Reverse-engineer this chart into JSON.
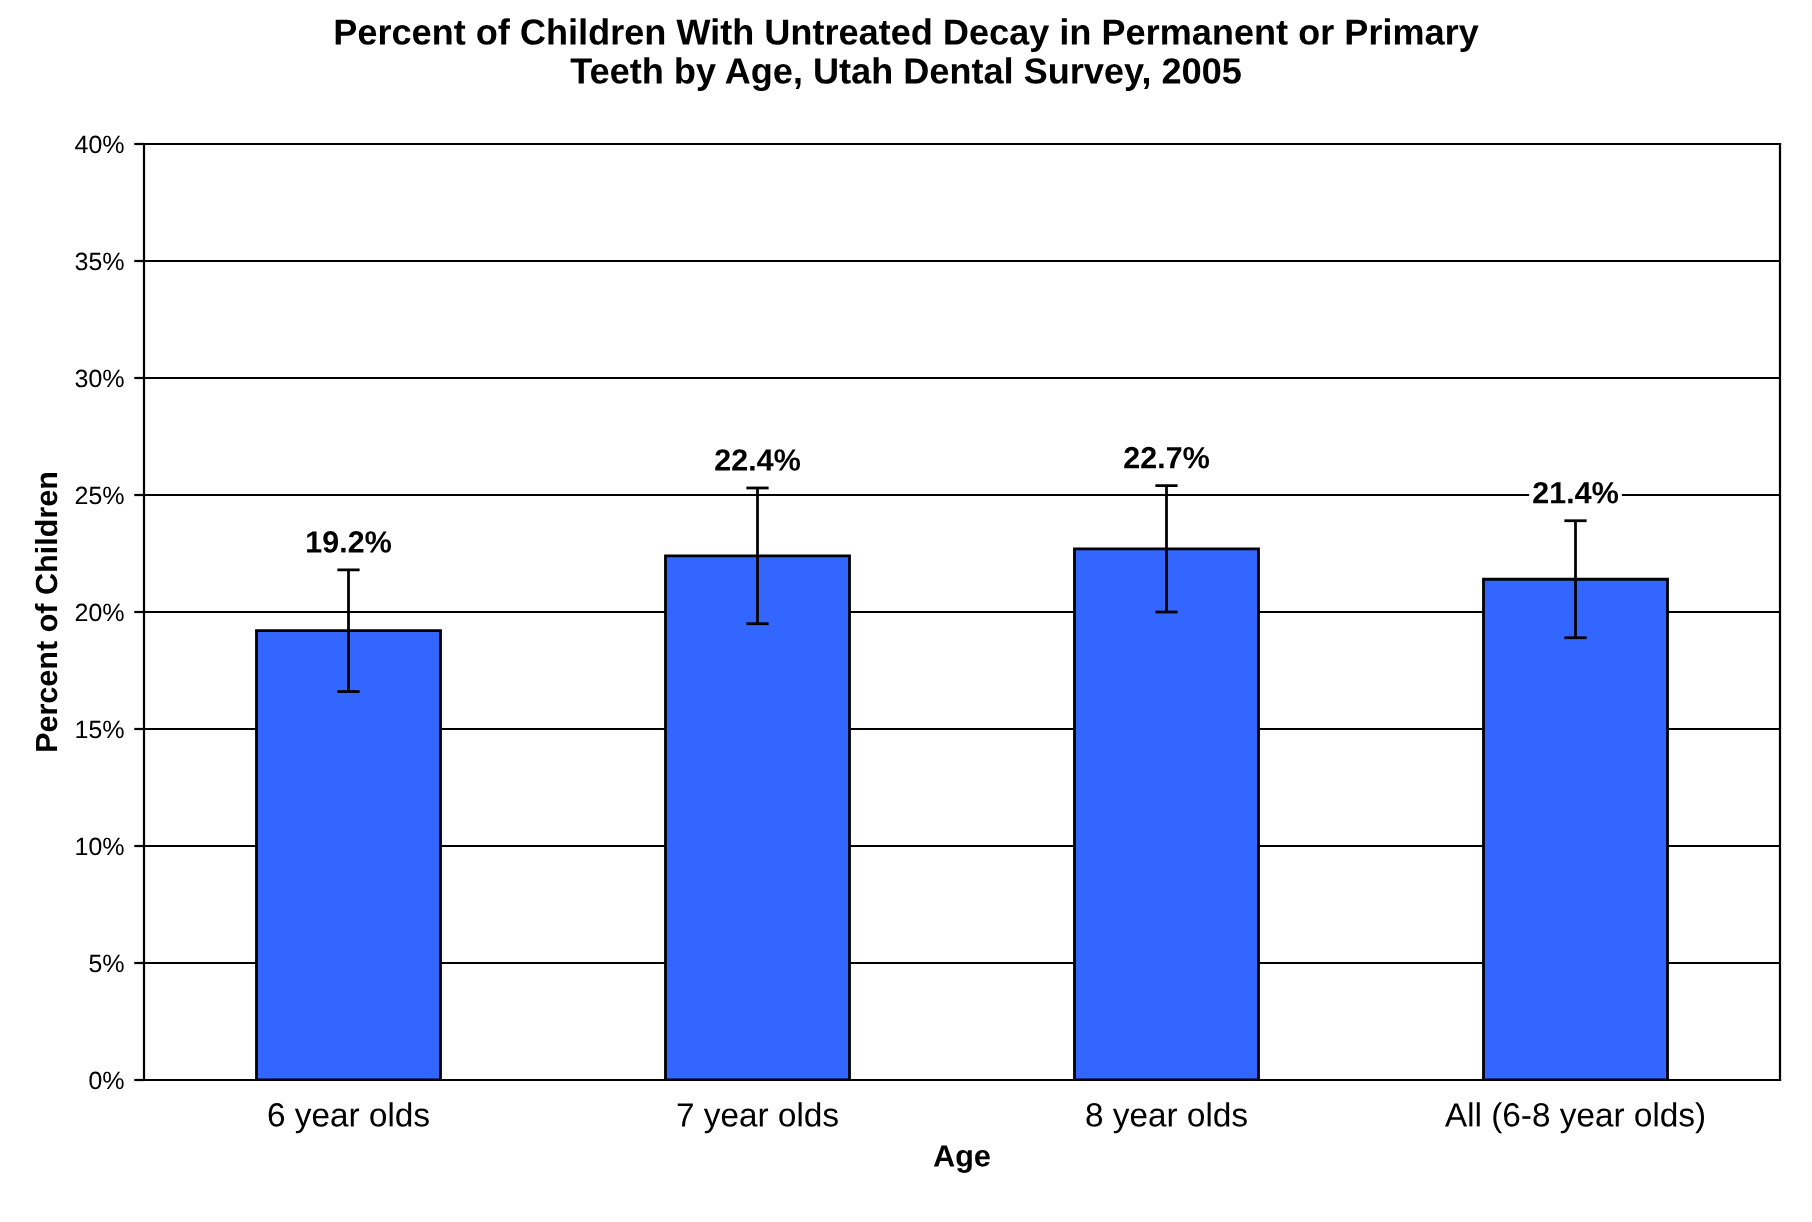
{
  "chart_data": {
    "type": "bar",
    "title": "Percent of Children With Untreated Decay in Permanent or Primary\nTeeth by Age, Utah Dental Survey, 2005",
    "xlabel": "Age",
    "ylabel": "Percent of Children",
    "categories": [
      "6 year olds",
      "7 year olds",
      "8 year olds",
      "All (6-8 year olds)"
    ],
    "values": [
      19.2,
      22.4,
      22.7,
      21.4
    ],
    "value_labels": [
      "19.2%",
      "22.4%",
      "22.7%",
      "21.4%"
    ],
    "errors": [
      [
        16.6,
        21.8
      ],
      [
        19.5,
        25.3
      ],
      [
        20.0,
        25.4
      ],
      [
        18.9,
        23.9
      ]
    ],
    "color": "#3366ff",
    "ylim": [
      0,
      40
    ],
    "yticks": [
      {
        "value": 0,
        "label": "0%"
      },
      {
        "value": 5,
        "label": "5%"
      },
      {
        "value": 10,
        "label": "10%"
      },
      {
        "value": 15,
        "label": "15%"
      },
      {
        "value": 20,
        "label": "20%"
      },
      {
        "value": 25,
        "label": "25%"
      },
      {
        "value": 30,
        "label": "30%"
      },
      {
        "value": 35,
        "label": "35%"
      },
      {
        "value": 40,
        "label": "40%"
      }
    ],
    "grid": "y",
    "legend": false
  }
}
